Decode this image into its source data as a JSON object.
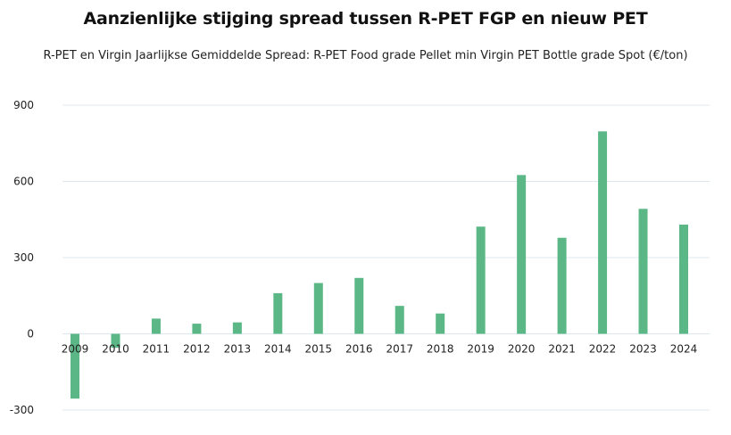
{
  "title": "Aanzienlijke stijging spread tussen R-PET FGP en nieuw PET",
  "subtitle": "R-PET en Virgin Jaarlijkse Gemiddelde Spread: R-PET Food grade Pellet min Virgin PET Bottle grade Spot (€/ton)",
  "colors": {
    "bar": "#5bb886",
    "grid": "#dce8f0"
  },
  "chart_data": {
    "type": "bar",
    "title": "Aanzienlijke stijging spread tussen R-PET FGP en nieuw PET",
    "subtitle": "R-PET en Virgin Jaarlijkse Gemiddelde Spread: R-PET Food grade Pellet min Virgin PET Bottle grade Spot (€/ton)",
    "categories": [
      "2009",
      "2010",
      "2011",
      "2012",
      "2013",
      "2014",
      "2015",
      "2016",
      "2017",
      "2018",
      "2019",
      "2020",
      "2021",
      "2022",
      "2023",
      "2024"
    ],
    "values": [
      -255,
      -55,
      60,
      40,
      45,
      160,
      200,
      220,
      110,
      80,
      422,
      625,
      378,
      797,
      492,
      430
    ],
    "ylim": [
      -300,
      900
    ],
    "yticks": [
      -300,
      0,
      300,
      600,
      900
    ],
    "grid": true,
    "xlabel": "",
    "ylabel": ""
  }
}
